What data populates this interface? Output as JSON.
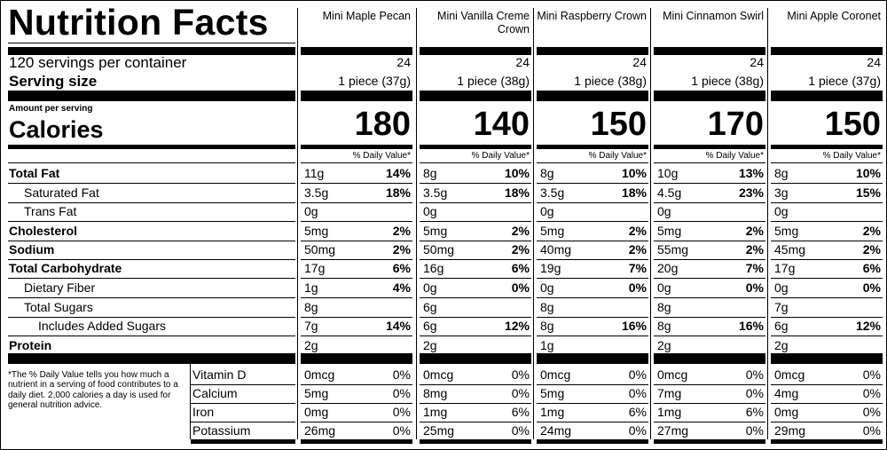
{
  "title": "Nutrition Facts",
  "servings_per_container": "120 servings per container",
  "serving_size_label": "Serving size",
  "amount_per_serving": "Amount per serving",
  "calories_label": "Calories",
  "dv_header": "% Daily Value*",
  "footnote": "*The % Daily Value tells you how much a nutrient in a serving of food contributes to a daily diet. 2,000 calories a day is used for general nutrition advice.",
  "nutrient_labels": [
    "Total Fat",
    "Saturated Fat",
    "Trans Fat",
    "Cholesterol",
    "Sodium",
    "Total Carbohydrate",
    "Dietary Fiber",
    "Total Sugars",
    "Includes Added Sugars",
    "Protein"
  ],
  "vitamin_labels": [
    "Vitamin D",
    "Calcium",
    "Iron",
    "Potassium"
  ],
  "products": [
    {
      "name": "Mini Maple Pecan",
      "servings": "24",
      "serving_size": "1 piece (37g)",
      "calories": "180",
      "nutrients": [
        [
          "11g",
          "14%"
        ],
        [
          "3.5g",
          "18%"
        ],
        [
          "0g",
          ""
        ],
        [
          "5mg",
          "2%"
        ],
        [
          "50mg",
          "2%"
        ],
        [
          "17g",
          "6%"
        ],
        [
          "1g",
          "4%"
        ],
        [
          "8g",
          ""
        ],
        [
          "7g",
          "14%"
        ],
        [
          "2g",
          ""
        ]
      ],
      "vitamins": [
        [
          "0mcg",
          "0%"
        ],
        [
          "5mg",
          "0%"
        ],
        [
          "0mg",
          "0%"
        ],
        [
          "26mg",
          "0%"
        ]
      ]
    },
    {
      "name": "Mini Vanilla Creme Crown",
      "servings": "24",
      "serving_size": "1 piece (38g)",
      "calories": "140",
      "nutrients": [
        [
          "8g",
          "10%"
        ],
        [
          "3.5g",
          "18%"
        ],
        [
          "0g",
          ""
        ],
        [
          "5mg",
          "2%"
        ],
        [
          "50mg",
          "2%"
        ],
        [
          "16g",
          "6%"
        ],
        [
          "0g",
          "0%"
        ],
        [
          "6g",
          ""
        ],
        [
          "6g",
          "12%"
        ],
        [
          "2g",
          ""
        ]
      ],
      "vitamins": [
        [
          "0mcg",
          "0%"
        ],
        [
          "8mg",
          "0%"
        ],
        [
          "1mg",
          "6%"
        ],
        [
          "25mg",
          "0%"
        ]
      ]
    },
    {
      "name": "Mini Raspberry Crown",
      "servings": "24",
      "serving_size": "1 piece (38g)",
      "calories": "150",
      "nutrients": [
        [
          "8g",
          "10%"
        ],
        [
          "3.5g",
          "18%"
        ],
        [
          "0g",
          ""
        ],
        [
          "5mg",
          "2%"
        ],
        [
          "40mg",
          "2%"
        ],
        [
          "19g",
          "7%"
        ],
        [
          "0g",
          "0%"
        ],
        [
          "8g",
          ""
        ],
        [
          "8g",
          "16%"
        ],
        [
          "1g",
          ""
        ]
      ],
      "vitamins": [
        [
          "0mcg",
          "0%"
        ],
        [
          "5mg",
          "0%"
        ],
        [
          "1mg",
          "6%"
        ],
        [
          "24mg",
          "0%"
        ]
      ]
    },
    {
      "name": "Mini Cinnamon Swirl",
      "servings": "24",
      "serving_size": "1 piece (38g)",
      "calories": "170",
      "nutrients": [
        [
          "10g",
          "13%"
        ],
        [
          "4.5g",
          "23%"
        ],
        [
          "0g",
          ""
        ],
        [
          "5mg",
          "2%"
        ],
        [
          "55mg",
          "2%"
        ],
        [
          "20g",
          "7%"
        ],
        [
          "0g",
          "0%"
        ],
        [
          "8g",
          ""
        ],
        [
          "8g",
          "16%"
        ],
        [
          "2g",
          ""
        ]
      ],
      "vitamins": [
        [
          "0mcg",
          "0%"
        ],
        [
          "7mg",
          "0%"
        ],
        [
          "1mg",
          "6%"
        ],
        [
          "27mg",
          "0%"
        ]
      ]
    },
    {
      "name": "Mini Apple Coronet",
      "servings": "24",
      "serving_size": "1 piece (37g)",
      "calories": "150",
      "nutrients": [
        [
          "8g",
          "10%"
        ],
        [
          "3g",
          "15%"
        ],
        [
          "0g",
          ""
        ],
        [
          "5mg",
          "2%"
        ],
        [
          "45mg",
          "2%"
        ],
        [
          "17g",
          "6%"
        ],
        [
          "0g",
          "0%"
        ],
        [
          "7g",
          ""
        ],
        [
          "6g",
          "12%"
        ],
        [
          "2g",
          ""
        ]
      ],
      "vitamins": [
        [
          "0mcg",
          "0%"
        ],
        [
          "4mg",
          "0%"
        ],
        [
          "0mg",
          "0%"
        ],
        [
          "29mg",
          "0%"
        ]
      ]
    }
  ]
}
